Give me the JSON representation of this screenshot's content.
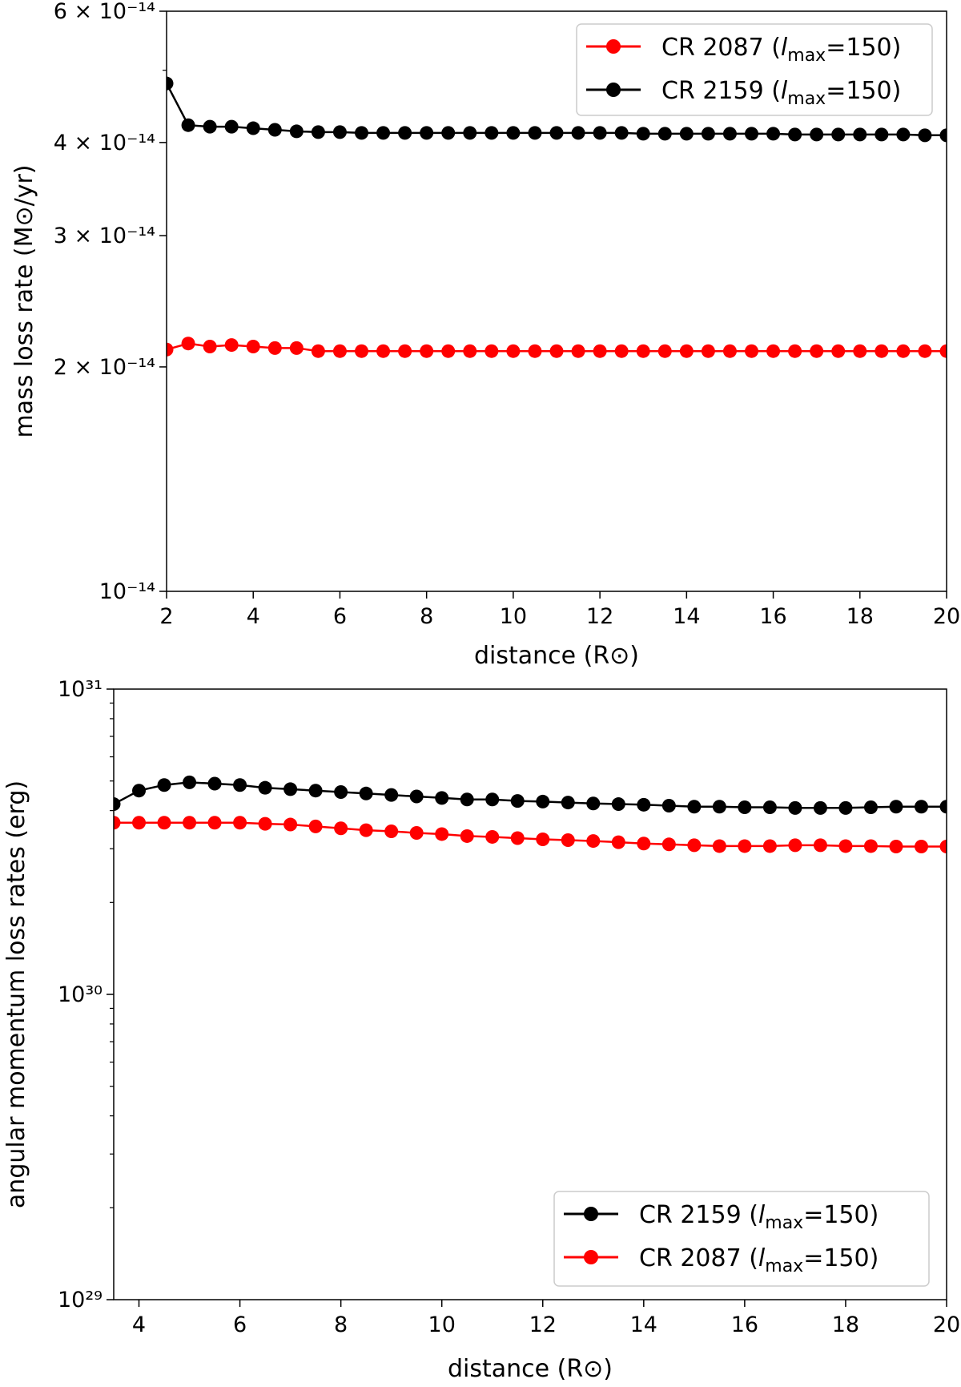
{
  "chart_data": [
    {
      "type": "line",
      "xlabel": "distance (R⊙)",
      "ylabel": "mass loss rate (M⊙/yr)",
      "yscale": "log",
      "xlim": [
        2,
        20
      ],
      "ylim": [
        1e-14,
        6e-14
      ],
      "grid": false,
      "legend_position": "top-right",
      "x_ticks": [
        2,
        4,
        6,
        8,
        10,
        12,
        14,
        16,
        18,
        20
      ],
      "y_ticks": [
        {
          "value": 1e-14,
          "label": "10⁻¹⁴"
        },
        {
          "value": 2e-14,
          "label": "2 × 10⁻¹⁴"
        },
        {
          "value": 3e-14,
          "label": "3 × 10⁻¹⁴"
        },
        {
          "value": 4e-14,
          "label": "4 × 10⁻¹⁴"
        },
        {
          "value": 6e-14,
          "label": "6 × 10⁻¹⁴"
        }
      ],
      "x": [
        2,
        2.5,
        3,
        3.5,
        4,
        4.5,
        5,
        5.5,
        6,
        6.5,
        7,
        7.5,
        8,
        8.5,
        9,
        9.5,
        10,
        10.5,
        11,
        11.5,
        12,
        12.5,
        13,
        13.5,
        14,
        14.5,
        15,
        15.5,
        16,
        16.5,
        17,
        17.5,
        18,
        18.5,
        19,
        19.5,
        20
      ],
      "series": [
        {
          "name": "CR 2087 (lmax=150)",
          "legend_main": "CR 2087 (",
          "legend_l": "l",
          "legend_sub": "max",
          "legend_end": "=150)",
          "color": "#ff0000",
          "values": [
            2.11e-14,
            2.15e-14,
            2.13e-14,
            2.14e-14,
            2.13e-14,
            2.12e-14,
            2.12e-14,
            2.1e-14,
            2.1e-14,
            2.1e-14,
            2.1e-14,
            2.1e-14,
            2.1e-14,
            2.1e-14,
            2.1e-14,
            2.1e-14,
            2.1e-14,
            2.1e-14,
            2.1e-14,
            2.1e-14,
            2.1e-14,
            2.1e-14,
            2.1e-14,
            2.1e-14,
            2.1e-14,
            2.1e-14,
            2.1e-14,
            2.1e-14,
            2.1e-14,
            2.1e-14,
            2.1e-14,
            2.1e-14,
            2.1e-14,
            2.1e-14,
            2.1e-14,
            2.1e-14,
            2.1e-14
          ]
        },
        {
          "name": "CR 2159 (lmax=150)",
          "legend_main": "CR 2159 (",
          "legend_l": "l",
          "legend_sub": "max",
          "legend_end": "=150)",
          "color": "#000000",
          "values": [
            4.8e-14,
            4.22e-14,
            4.2e-14,
            4.2e-14,
            4.18e-14,
            4.16e-14,
            4.14e-14,
            4.13e-14,
            4.13e-14,
            4.12e-14,
            4.12e-14,
            4.12e-14,
            4.12e-14,
            4.12e-14,
            4.12e-14,
            4.12e-14,
            4.12e-14,
            4.12e-14,
            4.12e-14,
            4.12e-14,
            4.12e-14,
            4.12e-14,
            4.11e-14,
            4.11e-14,
            4.11e-14,
            4.11e-14,
            4.11e-14,
            4.11e-14,
            4.11e-14,
            4.1e-14,
            4.1e-14,
            4.1e-14,
            4.1e-14,
            4.1e-14,
            4.1e-14,
            4.09e-14,
            4.09e-14
          ]
        }
      ]
    },
    {
      "type": "line",
      "xlabel": "distance (R⊙)",
      "ylabel": "angular momentum loss rates (erg)",
      "yscale": "log",
      "xlim": [
        3.5,
        20
      ],
      "ylim": [
        1e+29,
        1e+31
      ],
      "grid": false,
      "legend_position": "bottom-right",
      "x_ticks": [
        4,
        6,
        8,
        10,
        12,
        14,
        16,
        18,
        20
      ],
      "y_ticks": [
        {
          "value": 1e+29,
          "label": "10²⁹"
        },
        {
          "value": 1e+30,
          "label": "10³⁰"
        },
        {
          "value": 1e+31,
          "label": "10³¹"
        }
      ],
      "x": [
        3.5,
        4,
        4.5,
        5,
        5.5,
        6,
        6.5,
        7,
        7.5,
        8,
        8.5,
        9,
        9.5,
        10,
        10.5,
        11,
        11.5,
        12,
        12.5,
        13,
        13.5,
        14,
        14.5,
        15,
        15.5,
        16,
        16.5,
        17,
        17.5,
        18,
        18.5,
        19,
        19.5,
        20
      ],
      "series": [
        {
          "name": "CR 2159 (lmax=150)",
          "legend_main": "CR 2159 (",
          "legend_l": "l",
          "legend_sub": "max",
          "legend_end": "=150)",
          "color": "#000000",
          "values": [
            4.2e+30,
            4.65e+30,
            4.85e+30,
            4.95e+30,
            4.9e+30,
            4.85e+30,
            4.75e+30,
            4.7e+30,
            4.65e+30,
            4.6e+30,
            4.55e+30,
            4.5e+30,
            4.45e+30,
            4.4e+30,
            4.35e+30,
            4.35e+30,
            4.3e+30,
            4.28e+30,
            4.25e+30,
            4.22e+30,
            4.2e+30,
            4.18e+30,
            4.15e+30,
            4.12e+30,
            4.12e+30,
            4.1e+30,
            4.1e+30,
            4.08e+30,
            4.08e+30,
            4.08e+30,
            4.1e+30,
            4.12e+30,
            4.12e+30,
            4.12e+30
          ]
        },
        {
          "name": "CR 2087 (lmax=150)",
          "legend_main": "CR 2087 (",
          "legend_l": "l",
          "legend_sub": "max",
          "legend_end": "=150)",
          "color": "#ff0000",
          "values": [
            3.65e+30,
            3.65e+30,
            3.65e+30,
            3.65e+30,
            3.65e+30,
            3.65e+30,
            3.62e+30,
            3.6e+30,
            3.55e+30,
            3.5e+30,
            3.45e+30,
            3.42e+30,
            3.38e+30,
            3.35e+30,
            3.3e+30,
            3.28e+30,
            3.25e+30,
            3.22e+30,
            3.2e+30,
            3.18e+30,
            3.15e+30,
            3.12e+30,
            3.1e+30,
            3.08e+30,
            3.06e+30,
            3.06e+30,
            3.06e+30,
            3.08e+30,
            3.08e+30,
            3.06e+30,
            3.06e+30,
            3.05e+30,
            3.05e+30,
            3.05e+30
          ]
        }
      ]
    }
  ]
}
